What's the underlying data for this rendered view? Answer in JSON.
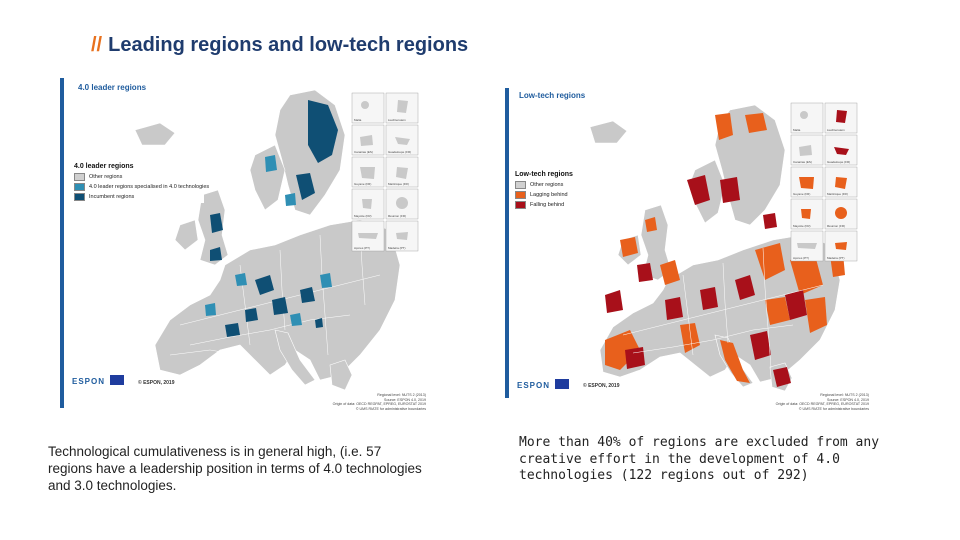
{
  "slide": {
    "title_prefix": "//",
    "title": "Leading regions and low-tech regions"
  },
  "left_map": {
    "header": "4.0 leader regions",
    "legend_title": "4.0 leader regions",
    "legend": [
      {
        "label": "Other regions",
        "color": "#d0d0d0"
      },
      {
        "label": "4.0 leader regions specialised in 4.0 technologies",
        "color": "#2f8fb4"
      },
      {
        "label": "Incumbent regions",
        "color": "#0f4f74"
      }
    ],
    "copyright": "© ESPON, 2019",
    "logo": "ESPON",
    "source_lines": [
      "Regional level: NUTS 2 (2013)",
      "Source: ESPON 4.0, 2019",
      "Origin of data: OECD REGPAT, EPREG, EUROSTAT 2019",
      "© UMS RIATE for administrative boundaries"
    ],
    "inset_labels": [
      "Malta",
      "Liechtenstein",
      "Canarias (ES)",
      "Guadeloupe (FR)",
      "Guyane (FR)",
      "Martinique (FR)",
      "Mayotte (FR)",
      "Réunion (FR)",
      "Açores (PT)",
      "Madeira (PT)"
    ]
  },
  "right_map": {
    "header": "Low-tech regions",
    "legend_title": "Low-tech regions",
    "legend": [
      {
        "label": "Other regions",
        "color": "#d0d0d0"
      },
      {
        "label": "Lagging behind",
        "color": "#e8601c"
      },
      {
        "label": "Falling behind",
        "color": "#a8101a"
      }
    ],
    "copyright": "© ESPON, 2019",
    "logo": "ESPON",
    "source_lines": [
      "Regional level: NUTS 2 (2013)",
      "Source: ESPON 4.0, 2019",
      "Origin of data: OECD REGPAT, EPREG, EUROSTAT 2019",
      "© UMS RIATE for administrative boundaries"
    ],
    "inset_labels": [
      "Malta",
      "Liechtenstein",
      "Canarias (ES)",
      "Guadeloupe (FR)",
      "Guyane (FR)",
      "Martinique (FR)",
      "Mayotte (FR)",
      "Réunion (FR)",
      "Açores (PT)",
      "Madeira (PT)"
    ]
  },
  "captions": {
    "left_bold": "Technological cumulativeness",
    "left_rest": " is in general high, (i.e. 57 regions have a leadership position in terms of 4.0 technologies and 3.0 technologies.",
    "right": "More than 40% of regions are excluded from any creative effort in the development of 4.0 technologies (122 regions out of 292)"
  },
  "colors": {
    "title": "#1f3c6e",
    "accent": "#e8711e",
    "espon_blue": "#1f5c9e",
    "sea": "#ffffff",
    "other_regions": "#d0d0d0"
  }
}
